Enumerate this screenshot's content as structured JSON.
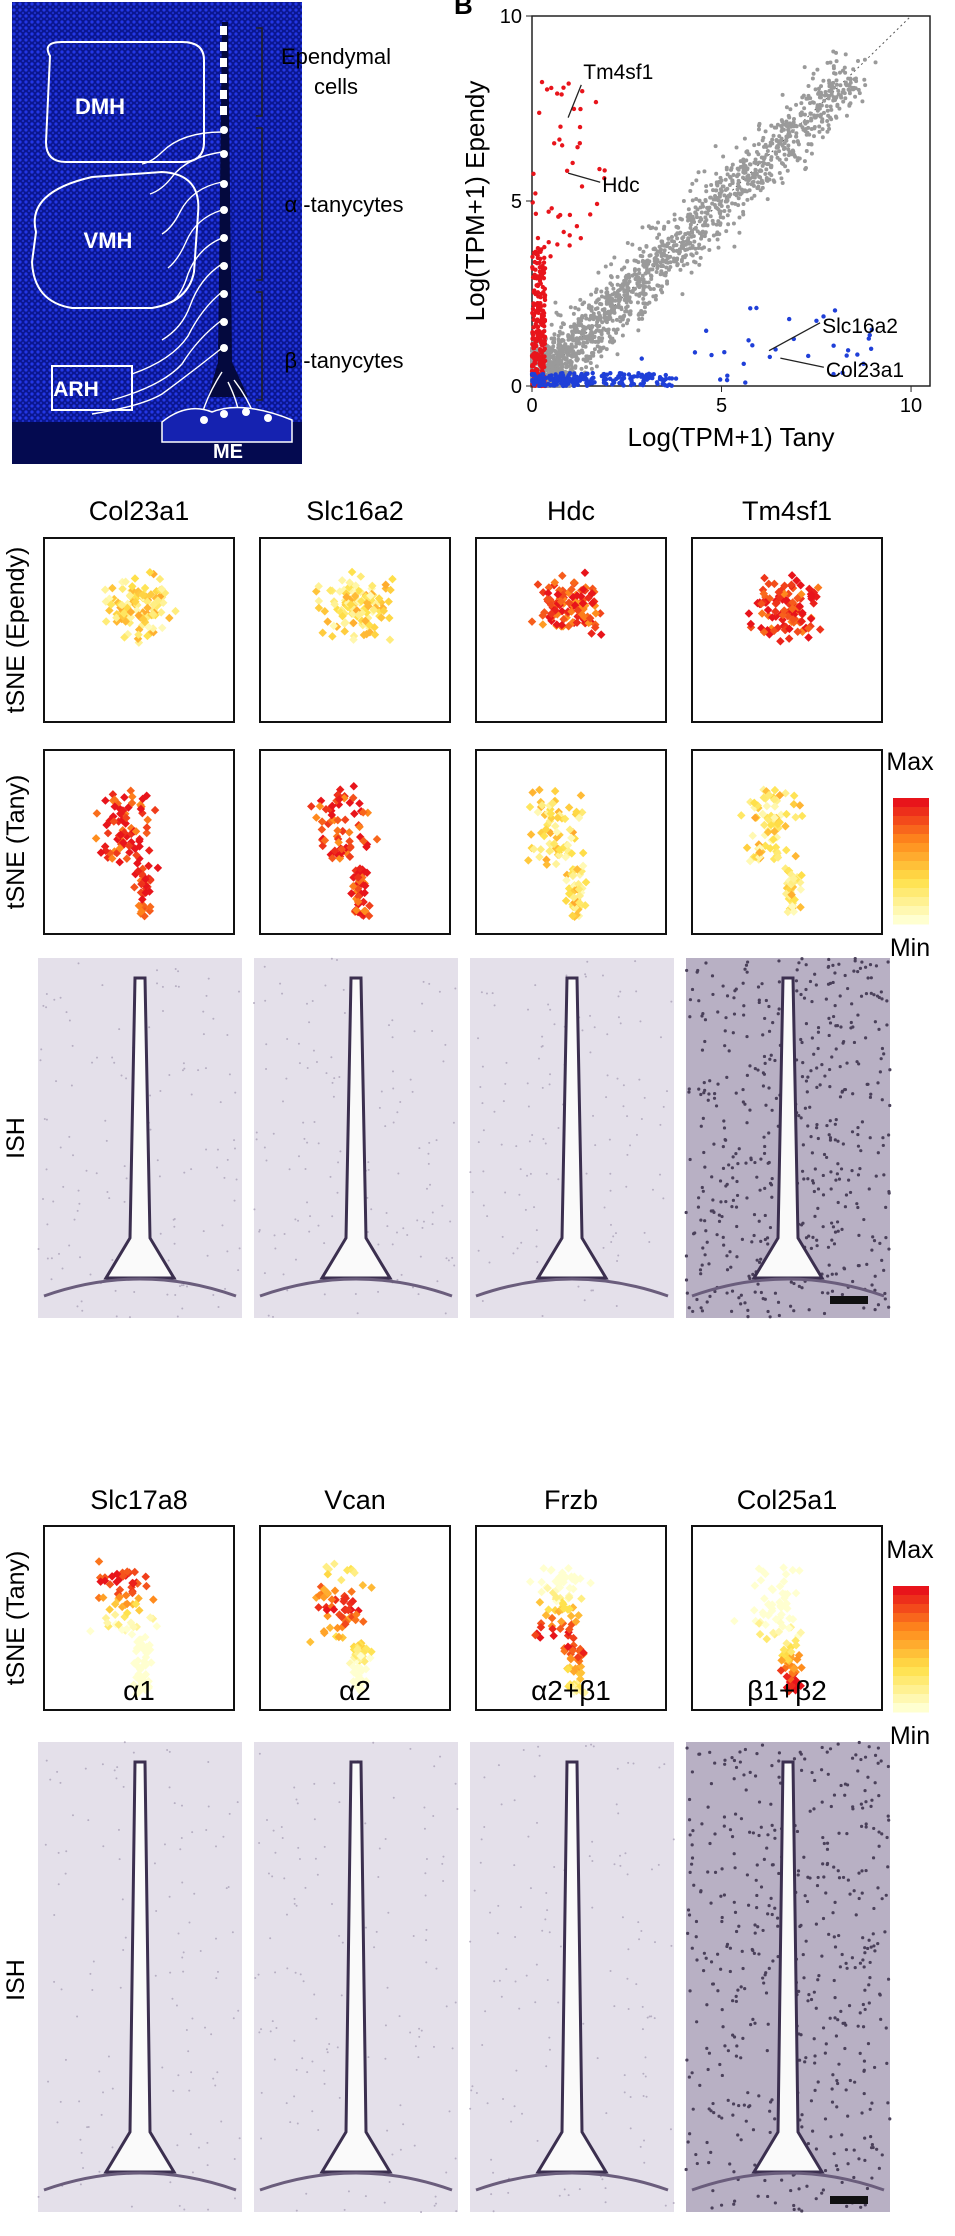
{
  "panelA": {
    "regions": [
      "DMH",
      "VMH",
      "ARH",
      "ME"
    ],
    "cell_labels": [
      "Ependymal",
      "cells",
      "α -tanycytes",
      "β -tanycytes"
    ],
    "colors": {
      "tissue": "#1a2bd8",
      "background": "#050a60",
      "line": "#ffffff"
    }
  },
  "chart_data": [
    {
      "type": "scatter",
      "panel_letter": "B",
      "xlabel": "Log(TPM+1) Tany",
      "ylabel": "Log(TPM+1) Ependy",
      "xlim": [
        0,
        10.5
      ],
      "ylim": [
        0,
        10
      ],
      "x_ticks": [
        0,
        5,
        10
      ],
      "y_ticks": [
        0,
        5,
        10
      ],
      "diagonal": "dotted y=x",
      "series_colors": {
        "ependy_enriched": "#e8141b",
        "tany_enriched": "#1f3fd8",
        "other": "#9a9a9a"
      },
      "annotations": [
        {
          "label": "Tm4sf1",
          "x": 0.9,
          "y": 7.2
        },
        {
          "label": "Hdc",
          "x": 0.9,
          "y": 5.7
        },
        {
          "label": "Slc16a2",
          "x": 6.2,
          "y": 0.9
        },
        {
          "label": "Col23a1",
          "x": 6.5,
          "y": 0.7
        }
      ]
    },
    {
      "type": "scatter",
      "group": "tSNE panel grid",
      "genes_top": [
        "Col23a1",
        "Slc16a2",
        "Hdc",
        "Tm4sf1"
      ],
      "genes_bottom": [
        "Slc17a8",
        "Vcan",
        "Frzb",
        "Col25a1"
      ],
      "row_labels": [
        "tSNE (Ependy)",
        "tSNE (Tany)",
        "ISH",
        "tSNE (Tany)",
        "ISH"
      ],
      "subtype_labels": [
        "α1",
        "α2",
        "α2+β1",
        "β1+β2"
      ],
      "colorbar": {
        "max_label": "Max",
        "min_label": "Min",
        "colors": [
          "#ffffd0",
          "#ffe14a",
          "#ff8a1c",
          "#e8141b"
        ]
      },
      "expression_level": {
        "ependy": {
          "Col23a1": 0.3,
          "Slc16a2": 0.3,
          "Hdc": 0.85,
          "Tm4sf1": 0.9
        },
        "tany_top": {
          "Col23a1": 0.9,
          "Slc16a2": 0.9,
          "Hdc": 0.3,
          "Tm4sf1": 0.3
        },
        "tany_bottom": {
          "Slc17a8": "top",
          "Vcan": "upper-middle",
          "Frzb": "middle",
          "Col25a1": "bottom"
        }
      }
    }
  ]
}
